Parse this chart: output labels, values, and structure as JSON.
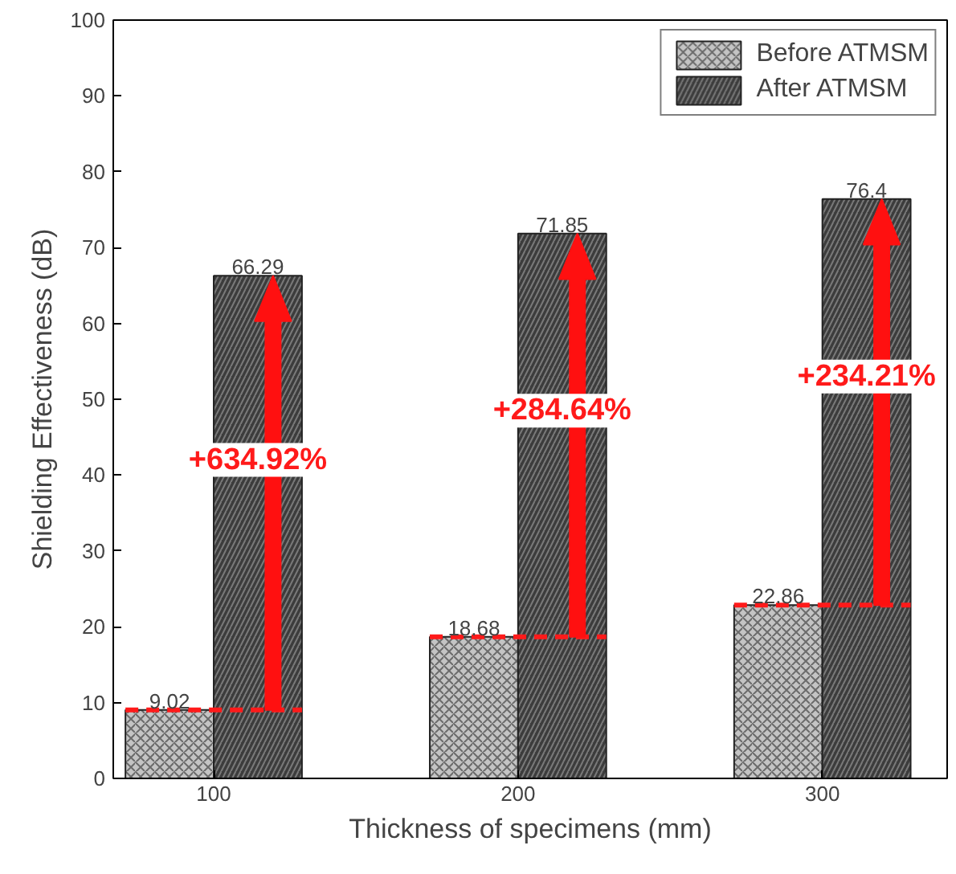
{
  "chart_data": {
    "type": "bar",
    "xlabel": "Thickness of specimens (mm)",
    "ylabel": "Shielding Effectiveness (dB)",
    "categories": [
      "100",
      "200",
      "300"
    ],
    "series": [
      {
        "name": "Before ATMSM",
        "color": "#c4c4c4",
        "values": [
          9.02,
          18.68,
          22.86
        ]
      },
      {
        "name": "After ATMSM",
        "color": "#3c3c3c",
        "values": [
          66.29,
          71.85,
          76.4
        ]
      }
    ],
    "ylim": [
      0,
      100
    ],
    "yticks": [
      0,
      10,
      20,
      30,
      40,
      50,
      60,
      70,
      80,
      90,
      100
    ],
    "data_labels": true,
    "grid": false,
    "legend": "top right",
    "annotations": [
      {
        "text": "+634.92%",
        "x": "100",
        "y": 42
      },
      {
        "text": "+284.64%",
        "x": "200",
        "y": 48.5
      },
      {
        "text": "+234.21%",
        "x": "300",
        "y": 53
      }
    ]
  }
}
